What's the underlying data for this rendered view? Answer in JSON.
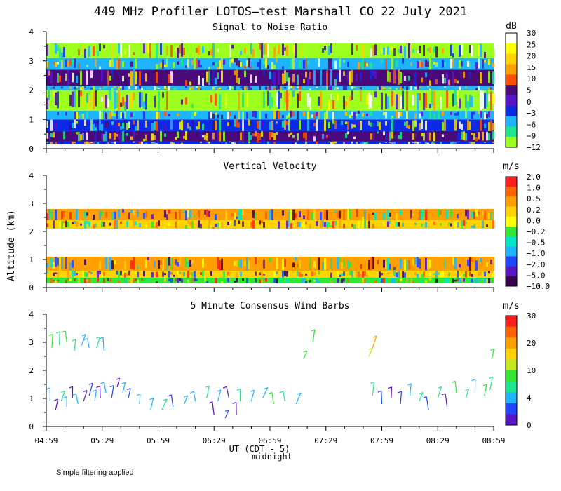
{
  "figure": {
    "title": "449 MHz Profiler LOTOS—test Marshall CO 22 July 2021",
    "ylabel": "Altitude (km)",
    "xlabel": "UT  (CDT - 5)",
    "midnight_label": "midnight",
    "footer": "Simple filtering applied"
  },
  "chart_data": [
    {
      "type": "heatmap",
      "title": "Signal to Noise Ratio",
      "unit": "dB",
      "ylim": [
        0,
        4
      ],
      "yticks": [
        "0",
        "1",
        "2",
        "3",
        "4"
      ],
      "xticks": [
        "04:59",
        "05:29",
        "05:59",
        "06:29",
        "06:59",
        "07:29",
        "07:59",
        "08:29",
        "08:59"
      ],
      "legend": {
        "labels": [
          "30",
          "25",
          "20",
          "15",
          "10",
          "5",
          "0",
          "−3",
          "−6",
          "−9",
          "−12"
        ],
        "colors": [
          "#ffffff",
          "#ffff00",
          "#ffd200",
          "#ffa000",
          "#ff5000",
          "#4a0a7a",
          "#5a14c8",
          "#0a2ae6",
          "#1eb4ff",
          "#1ee68c",
          "#9cff1e"
        ]
      },
      "bands": [
        {
          "y0": 0.15,
          "y1": 0.25,
          "color": "#0a2ae6"
        },
        {
          "y0": 0.25,
          "y1": 0.6,
          "color": "#4a0a7a"
        },
        {
          "y0": 0.6,
          "y1": 1.0,
          "color": "#0a2ae6"
        },
        {
          "y0": 1.0,
          "y1": 1.3,
          "color": "#1eb4ff"
        },
        {
          "y0": 1.3,
          "y1": 2.0,
          "color": "#9cff1e"
        },
        {
          "y0": 2.0,
          "y1": 2.15,
          "color": "#1eb4ff"
        },
        {
          "y0": 2.15,
          "y1": 2.7,
          "color": "#4a0a7a"
        },
        {
          "y0": 2.7,
          "y1": 3.1,
          "color": "#1eb4ff"
        },
        {
          "y0": 3.1,
          "y1": 3.6,
          "color": "#9cff1e"
        }
      ]
    },
    {
      "type": "heatmap",
      "title": "Vertical Velocity",
      "unit": "m/s",
      "ylim": [
        0,
        4
      ],
      "yticks": [
        "0",
        "1",
        "2",
        "3",
        "4"
      ],
      "xticks": [
        "04:59",
        "05:29",
        "05:59",
        "06:29",
        "06:59",
        "07:29",
        "07:59",
        "08:29",
        "08:59"
      ],
      "legend": {
        "labels": [
          "2.0",
          "1.0",
          "0.5",
          "0.2",
          "0.0",
          "−0.2",
          "−0.5",
          "−1.0",
          "−2.0",
          "−5.0",
          "−10.0"
        ],
        "colors": [
          "#ff1e1e",
          "#ff6400",
          "#ffa000",
          "#ffd200",
          "#ffff00",
          "#32e632",
          "#00e6c8",
          "#1eb4ff",
          "#1e46ff",
          "#5a14c8",
          "#3a0050"
        ]
      },
      "bands": [
        {
          "y0": 0.15,
          "y1": 0.35,
          "color": "#32e632"
        },
        {
          "y0": 0.35,
          "y1": 0.6,
          "color": "#ffd200"
        },
        {
          "y0": 0.6,
          "y1": 1.1,
          "color": "#ffa000"
        },
        {
          "y0": 2.1,
          "y1": 2.4,
          "color": "#ffd200"
        },
        {
          "y0": 2.4,
          "y1": 2.8,
          "color": "#ffa000"
        }
      ]
    },
    {
      "type": "scatter",
      "title": "5 Minute Consensus Wind Barbs",
      "unit": "m/s",
      "ylim": [
        0,
        4
      ],
      "yticks": [
        "0",
        "1",
        "2",
        "3",
        "4"
      ],
      "xticks": [
        "04:59",
        "05:29",
        "05:59",
        "06:29",
        "06:59",
        "07:29",
        "07:59",
        "08:29",
        "08:59"
      ],
      "legend": {
        "labels": [
          "30",
          "20",
          "10",
          "4",
          "0"
        ],
        "colors": [
          "#ff1e1e",
          "#ff6400",
          "#ffa000",
          "#ffd200",
          "#c8e61e",
          "#32e632",
          "#1ee68c",
          "#1eb4ff",
          "#1e46ff",
          "#5a14c8"
        ]
      },
      "barbs": [
        {
          "t": 2,
          "alt": 0.9,
          "color": "#1eb4ff"
        },
        {
          "t": 5,
          "alt": 0.6,
          "color": "#5a14c8"
        },
        {
          "t": 8,
          "alt": 0.9,
          "color": "#1ee68c"
        },
        {
          "t": 11,
          "alt": 0.7,
          "color": "#1eb4ff"
        },
        {
          "t": 14,
          "alt": 1.0,
          "color": "#5a14c8"
        },
        {
          "t": 17,
          "alt": 0.8,
          "color": "#1eb4ff"
        },
        {
          "t": 20,
          "alt": 0.9,
          "color": "#5a14c8"
        },
        {
          "t": 23,
          "alt": 1.1,
          "color": "#1e46ff"
        },
        {
          "t": 26,
          "alt": 0.9,
          "color": "#1eb4ff"
        },
        {
          "t": 29,
          "alt": 1.0,
          "color": "#5a14c8"
        },
        {
          "t": 32,
          "alt": 1.2,
          "color": "#1eb4ff"
        },
        {
          "t": 35,
          "alt": 1.0,
          "color": "#1e46ff"
        },
        {
          "t": 38,
          "alt": 1.4,
          "color": "#5a14c8"
        },
        {
          "t": 41,
          "alt": 1.2,
          "color": "#1eb4ff"
        },
        {
          "t": 44,
          "alt": 1.0,
          "color": "#1e46ff"
        },
        {
          "t": 50,
          "alt": 0.8,
          "color": "#1eb4ff"
        },
        {
          "t": 56,
          "alt": 0.6,
          "color": "#1eb4ff"
        },
        {
          "t": 62,
          "alt": 0.6,
          "color": "#1ee68c"
        },
        {
          "t": 68,
          "alt": 0.7,
          "color": "#1e46ff"
        },
        {
          "t": 74,
          "alt": 0.8,
          "color": "#1eb4ff"
        },
        {
          "t": 80,
          "alt": 0.9,
          "color": "#1eb4ff"
        },
        {
          "t": 86,
          "alt": 1.0,
          "color": "#1ee68c"
        },
        {
          "t": 92,
          "alt": 0.9,
          "color": "#1eb4ff"
        },
        {
          "t": 98,
          "alt": 1.0,
          "color": "#5a14c8"
        },
        {
          "t": 104,
          "alt": 0.9,
          "color": "#1ee68c"
        },
        {
          "t": 110,
          "alt": 0.9,
          "color": "#1eb4ff"
        },
        {
          "t": 116,
          "alt": 1.0,
          "color": "#1eb4ff"
        },
        {
          "t": 122,
          "alt": 0.8,
          "color": "#32e632"
        },
        {
          "t": 128,
          "alt": 0.9,
          "color": "#1ee68c"
        },
        {
          "t": 134,
          "alt": 0.8,
          "color": "#1eb4ff"
        },
        {
          "t": 90,
          "alt": 0.4,
          "color": "#5a14c8"
        },
        {
          "t": 96,
          "alt": 0.3,
          "color": "#1e46ff"
        },
        {
          "t": 102,
          "alt": 0.4,
          "color": "#5a14c8"
        },
        {
          "t": 3,
          "alt": 2.8,
          "color": "#32e632"
        },
        {
          "t": 7,
          "alt": 2.9,
          "color": "#1ee68c"
        },
        {
          "t": 11,
          "alt": 3.0,
          "color": "#32e632"
        },
        {
          "t": 15,
          "alt": 2.7,
          "color": "#1ee68c"
        },
        {
          "t": 19,
          "alt": 2.9,
          "color": "#1eb4ff"
        },
        {
          "t": 23,
          "alt": 2.8,
          "color": "#1eb4ff"
        },
        {
          "t": 27,
          "alt": 2.8,
          "color": "#1ee68c"
        },
        {
          "t": 31,
          "alt": 2.7,
          "color": "#1eb4ff"
        },
        {
          "t": 138,
          "alt": 2.4,
          "color": "#32e632"
        },
        {
          "t": 143,
          "alt": 3.0,
          "color": "#32e632"
        },
        {
          "t": 173,
          "alt": 2.5,
          "color": "#c8e61e"
        },
        {
          "t": 175,
          "alt": 2.8,
          "color": "#ffa000"
        },
        {
          "t": 175,
          "alt": 1.1,
          "color": "#1ee68c"
        },
        {
          "t": 180,
          "alt": 0.8,
          "color": "#1e46ff"
        },
        {
          "t": 185,
          "alt": 1.0,
          "color": "#5a14c8"
        },
        {
          "t": 190,
          "alt": 0.8,
          "color": "#1e46ff"
        },
        {
          "t": 195,
          "alt": 1.1,
          "color": "#1eb4ff"
        },
        {
          "t": 200,
          "alt": 0.9,
          "color": "#1ee68c"
        },
        {
          "t": 205,
          "alt": 0.6,
          "color": "#1e46ff"
        },
        {
          "t": 210,
          "alt": 1.0,
          "color": "#1ee68c"
        },
        {
          "t": 215,
          "alt": 0.7,
          "color": "#5a14c8"
        },
        {
          "t": 220,
          "alt": 1.2,
          "color": "#32e632"
        },
        {
          "t": 225,
          "alt": 1.0,
          "color": "#1ee68c"
        },
        {
          "t": 230,
          "alt": 1.2,
          "color": "#1eb4ff"
        },
        {
          "t": 235,
          "alt": 1.1,
          "color": "#32e632"
        },
        {
          "t": 238,
          "alt": 1.3,
          "color": "#1ee68c"
        },
        {
          "t": 239,
          "alt": 2.4,
          "color": "#32e632"
        }
      ]
    }
  ]
}
